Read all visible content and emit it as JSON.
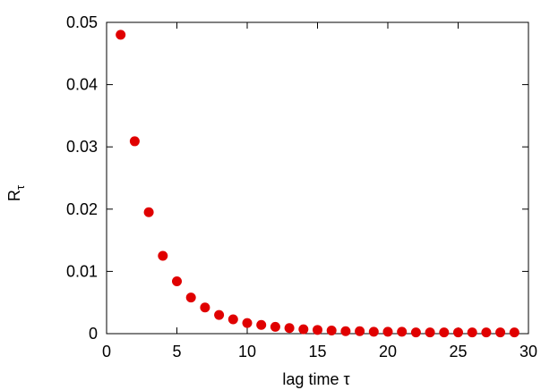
{
  "chart_data": {
    "type": "scatter",
    "title": "",
    "xlabel": "lag time τ",
    "ylabel": "R",
    "ylabel_subscript": "τ",
    "xlim": [
      0,
      30
    ],
    "ylim": [
      0,
      0.05
    ],
    "xticks": [
      0,
      5,
      10,
      15,
      20,
      25,
      30
    ],
    "xtick_labels": [
      "0",
      "5",
      "10",
      "15",
      "20",
      "25",
      "30"
    ],
    "yticks": [
      0,
      0.01,
      0.02,
      0.03,
      0.04,
      0.05
    ],
    "ytick_labels": [
      "0",
      "0.01",
      "0.02",
      "0.03",
      "0.04",
      "0.05"
    ],
    "grid": false,
    "legend": "none",
    "marker_color": "#e00000",
    "series": [
      {
        "x": [
          1,
          2,
          3,
          4,
          5,
          6,
          7,
          8,
          9,
          10,
          11,
          12,
          13,
          14,
          15,
          16,
          17,
          18,
          19,
          20,
          21,
          22,
          23,
          24,
          25,
          26,
          27,
          28,
          29
        ],
        "y": [
          0.048,
          0.0309,
          0.0195,
          0.0125,
          0.0084,
          0.0058,
          0.0042,
          0.003,
          0.0023,
          0.0017,
          0.0014,
          0.0011,
          0.0009,
          0.0007,
          0.0006,
          0.0005,
          0.0004,
          0.0004,
          0.0003,
          0.0003,
          0.0003,
          0.0002,
          0.0002,
          0.0002,
          0.0002,
          0.0002,
          0.0002,
          0.0002,
          0.0002
        ]
      }
    ]
  }
}
